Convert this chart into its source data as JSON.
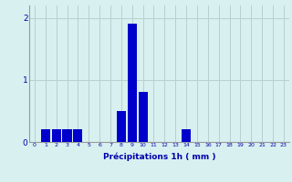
{
  "values": [
    0,
    0.2,
    0.2,
    0.2,
    0.2,
    0,
    0,
    0,
    0.5,
    1.9,
    0.8,
    0,
    0,
    0,
    0.2,
    0,
    0,
    0,
    0,
    0,
    0,
    0,
    0,
    0
  ],
  "categories": [
    0,
    1,
    2,
    3,
    4,
    5,
    6,
    7,
    8,
    9,
    10,
    11,
    12,
    13,
    14,
    15,
    16,
    17,
    18,
    19,
    20,
    21,
    22,
    23
  ],
  "bar_color": "#0000cc",
  "background_color": "#d8f0f0",
  "grid_color": "#b8d0d0",
  "xlabel": "Précipitations 1h ( mm )",
  "xlabel_color": "#0000aa",
  "tick_color": "#0000aa",
  "ylim": [
    0,
    2.2
  ],
  "yticks": [
    0,
    1,
    2
  ],
  "xlim": [
    -0.5,
    23.5
  ],
  "xtick_fontsize": 4.5,
  "ytick_fontsize": 6.5,
  "xlabel_fontsize": 6.5
}
